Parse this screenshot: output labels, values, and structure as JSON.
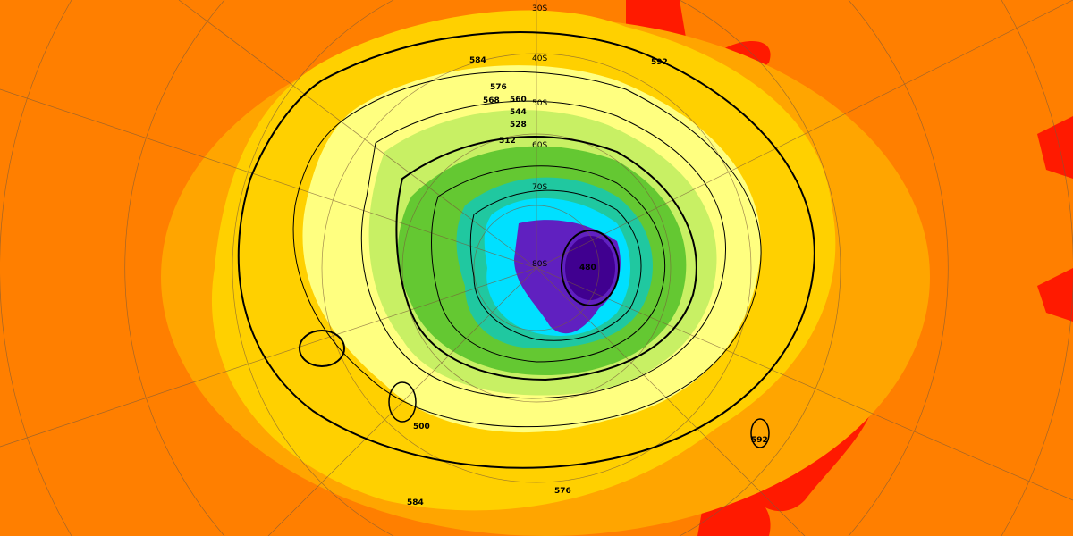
{
  "map": {
    "projection": "polar-stereographic-south",
    "colors": {
      "background": "#ff7f00",
      "warm_high": "#ff0000",
      "very_warm": "#c80000",
      "orange_light": "#ffa500",
      "yellow": "#ffe000",
      "pale_yellow": "#ffff80",
      "light_green": "#c8f064",
      "green": "#64c832",
      "teal": "#20c8a0",
      "cyan": "#00e0ff",
      "blue": "#2080ff",
      "purple": "#6020c0",
      "deep_purple": "#400090"
    },
    "latitude_labels": [
      "30S",
      "40S",
      "50S",
      "60S",
      "70S",
      "80S"
    ],
    "contour_labels": [
      "576",
      "568",
      "560",
      "544",
      "528",
      "512",
      "584",
      "592",
      "500",
      "480",
      "584",
      "576",
      "592"
    ]
  }
}
